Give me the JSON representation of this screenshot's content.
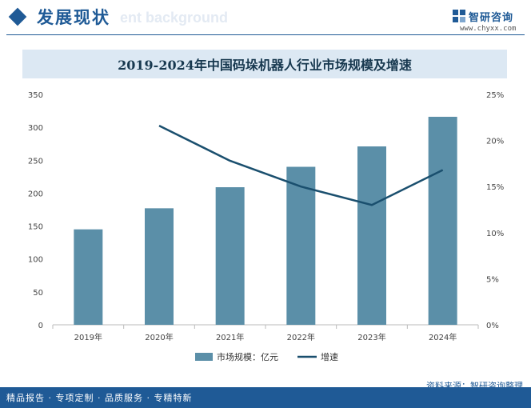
{
  "header": {
    "section_title": "发展现状",
    "ghost_text": "ent background",
    "brand_name": "智研咨询",
    "brand_url": "www.chyxx.com"
  },
  "footer": {
    "source": "资料来源：智研咨询整理",
    "slogan": "精品报告 · 专项定制 · 品质服务 · 专精特新"
  },
  "colors": {
    "bar": "#5b8fa8",
    "line": "#1a4f6e",
    "accent": "#1f5a96"
  },
  "chart_data": {
    "type": "bar",
    "title": "2019-2024年中国码垛机器人行业市场规模及增速",
    "categories": [
      "2019年",
      "2020年",
      "2021年",
      "2022年",
      "2023年",
      "2024年"
    ],
    "series": [
      {
        "name": "市场规模：亿元",
        "kind": "bar",
        "axis": "left",
        "values": [
          145,
          177,
          209,
          240,
          271,
          316
        ]
      },
      {
        "name": "增速",
        "kind": "line",
        "axis": "right",
        "values": [
          null,
          21.6,
          17.8,
          15.0,
          13.0,
          16.8
        ]
      }
    ],
    "ylim_left": [
      0,
      350
    ],
    "yticks_left": [
      "0",
      "50",
      "100",
      "150",
      "200",
      "250",
      "300",
      "350"
    ],
    "ylim_right": [
      0,
      25
    ],
    "yticks_right": [
      "0%",
      "5%",
      "10%",
      "15%",
      "20%",
      "25%"
    ],
    "legend_position": "bottom-center"
  }
}
